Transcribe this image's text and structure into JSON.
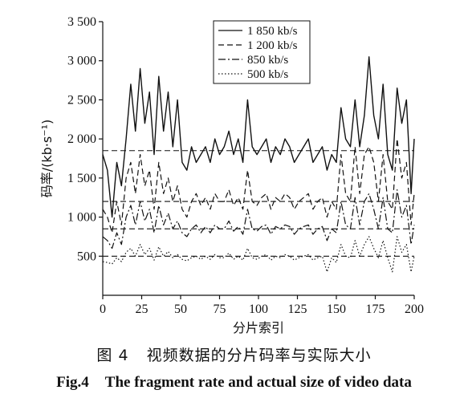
{
  "caption": {
    "zh_number": "图 4",
    "zh_text": "视频数据的分片码率与实际大小",
    "en_number": "Fig.4",
    "en_text": "The fragment rate and actual size of video data"
  },
  "chart_data": {
    "type": "line",
    "title": "",
    "xlabel": "分片索引",
    "ylabel": "码率/(kb·s⁻¹)",
    "xlim": [
      0,
      200
    ],
    "ylim": [
      0,
      3500
    ],
    "xticks": [
      0,
      25,
      50,
      75,
      100,
      125,
      150,
      175,
      200
    ],
    "xtick_labels": [
      "0",
      "25",
      "50",
      "75",
      "100",
      "125",
      "150",
      "175",
      "200"
    ],
    "yticks": [
      500,
      1000,
      1500,
      2000,
      2500,
      3000,
      3500
    ],
    "ytick_labels": [
      "500",
      "1 000",
      "1 500",
      "2 000",
      "2 500",
      "3 000",
      "3 500"
    ],
    "grid": false,
    "legend_position": "top-center",
    "reference_lines": [
      {
        "y": 1850,
        "style": "dash"
      },
      {
        "y": 1200,
        "style": "dash"
      },
      {
        "y": 850,
        "style": "dash"
      },
      {
        "y": 500,
        "style": "dash"
      }
    ],
    "series": [
      {
        "name": "1 850 kb/s",
        "style": "solid",
        "x": [
          0,
          3,
          6,
          9,
          12,
          15,
          18,
          21,
          24,
          27,
          30,
          33,
          36,
          39,
          42,
          45,
          48,
          51,
          54,
          57,
          60,
          63,
          66,
          69,
          72,
          75,
          78,
          81,
          84,
          87,
          90,
          93,
          96,
          99,
          102,
          105,
          108,
          111,
          114,
          117,
          120,
          123,
          126,
          129,
          132,
          135,
          138,
          141,
          144,
          147,
          150,
          153,
          156,
          159,
          162,
          165,
          168,
          171,
          174,
          177,
          180,
          183,
          186,
          189,
          192,
          195,
          198,
          200
        ],
        "values": [
          1800,
          1600,
          1000,
          1700,
          1400,
          2000,
          2700,
          2100,
          2900,
          2200,
          2600,
          1800,
          2800,
          2100,
          2600,
          1900,
          2500,
          1700,
          1600,
          1900,
          1700,
          1800,
          1900,
          1700,
          2000,
          1800,
          1900,
          2100,
          1800,
          2000,
          1700,
          2500,
          1900,
          1800,
          1900,
          2000,
          1700,
          1900,
          1800,
          2000,
          1900,
          1700,
          1800,
          1900,
          2000,
          1700,
          1800,
          1900,
          1600,
          1800,
          1700,
          2400,
          2000,
          1900,
          2500,
          1900,
          2300,
          3050,
          2300,
          2000,
          2700,
          1800,
          1600,
          2650,
          2200,
          2500,
          1300,
          2000
        ]
      },
      {
        "name": "1 200 kb/s",
        "style": "dash",
        "x": [
          0,
          3,
          6,
          9,
          12,
          15,
          18,
          21,
          24,
          27,
          30,
          33,
          36,
          39,
          42,
          45,
          48,
          51,
          54,
          57,
          60,
          63,
          66,
          69,
          72,
          75,
          78,
          81,
          84,
          87,
          90,
          93,
          96,
          99,
          102,
          105,
          108,
          111,
          114,
          117,
          120,
          123,
          126,
          129,
          132,
          135,
          138,
          141,
          144,
          147,
          150,
          153,
          156,
          159,
          162,
          165,
          168,
          171,
          174,
          177,
          180,
          183,
          186,
          189,
          192,
          195,
          198,
          200
        ],
        "values": [
          1100,
          1000,
          800,
          1200,
          900,
          1500,
          1700,
          1300,
          1800,
          1400,
          1600,
          1100,
          1700,
          1300,
          1500,
          1200,
          1400,
          1100,
          1000,
          1200,
          1300,
          1150,
          1250,
          1100,
          1300,
          1200,
          1200,
          1350,
          1150,
          1250,
          1100,
          1600,
          1200,
          1150,
          1250,
          1300,
          1100,
          1250,
          1200,
          1300,
          1250,
          1100,
          1200,
          1250,
          1300,
          1100,
          1200,
          1250,
          1000,
          1200,
          1100,
          1800,
          1300,
          1200,
          1900,
          1300,
          1800,
          1900,
          1700,
          1200,
          1800,
          1200,
          1100,
          2000,
          1500,
          1700,
          900,
          1300
        ]
      },
      {
        "name": "850 kb/s",
        "style": "dashdot",
        "x": [
          0,
          3,
          6,
          9,
          12,
          15,
          18,
          21,
          24,
          27,
          30,
          33,
          36,
          39,
          42,
          45,
          48,
          51,
          54,
          57,
          60,
          63,
          66,
          69,
          72,
          75,
          78,
          81,
          84,
          87,
          90,
          93,
          96,
          99,
          102,
          105,
          108,
          111,
          114,
          117,
          120,
          123,
          126,
          129,
          132,
          135,
          138,
          141,
          144,
          147,
          150,
          153,
          156,
          159,
          162,
          165,
          168,
          171,
          174,
          177,
          180,
          183,
          186,
          189,
          192,
          195,
          198,
          200
        ],
        "values": [
          750,
          700,
          600,
          800,
          650,
          1000,
          1150,
          900,
          1200,
          950,
          1100,
          800,
          1150,
          900,
          1050,
          850,
          950,
          800,
          750,
          850,
          900,
          800,
          880,
          800,
          900,
          850,
          850,
          950,
          820,
          880,
          780,
          1100,
          850,
          820,
          880,
          900,
          780,
          880,
          850,
          900,
          880,
          780,
          850,
          880,
          900,
          780,
          850,
          880,
          700,
          850,
          800,
          1200,
          900,
          850,
          1250,
          900,
          1200,
          1300,
          1100,
          850,
          1250,
          850,
          800,
          1350,
          1000,
          1150,
          650,
          900
        ]
      },
      {
        "name": "500 kb/s",
        "style": "dot",
        "x": [
          0,
          3,
          6,
          9,
          12,
          15,
          18,
          21,
          24,
          27,
          30,
          33,
          36,
          39,
          42,
          45,
          48,
          51,
          54,
          57,
          60,
          63,
          66,
          69,
          72,
          75,
          78,
          81,
          84,
          87,
          90,
          93,
          96,
          99,
          102,
          105,
          108,
          111,
          114,
          117,
          120,
          123,
          126,
          129,
          132,
          135,
          138,
          141,
          144,
          147,
          150,
          153,
          156,
          159,
          162,
          165,
          168,
          171,
          174,
          177,
          180,
          183,
          186,
          189,
          192,
          195,
          198,
          200
        ],
        "values": [
          430,
          420,
          400,
          480,
          430,
          550,
          600,
          500,
          650,
          520,
          600,
          450,
          620,
          500,
          560,
          480,
          520,
          460,
          440,
          480,
          500,
          460,
          500,
          460,
          520,
          480,
          480,
          540,
          460,
          500,
          450,
          600,
          480,
          460,
          500,
          520,
          450,
          500,
          480,
          520,
          500,
          450,
          480,
          500,
          520,
          450,
          480,
          500,
          300,
          480,
          420,
          650,
          500,
          480,
          700,
          500,
          650,
          750,
          600,
          480,
          700,
          480,
          300,
          750,
          550,
          650,
          300,
          500
        ]
      }
    ]
  }
}
